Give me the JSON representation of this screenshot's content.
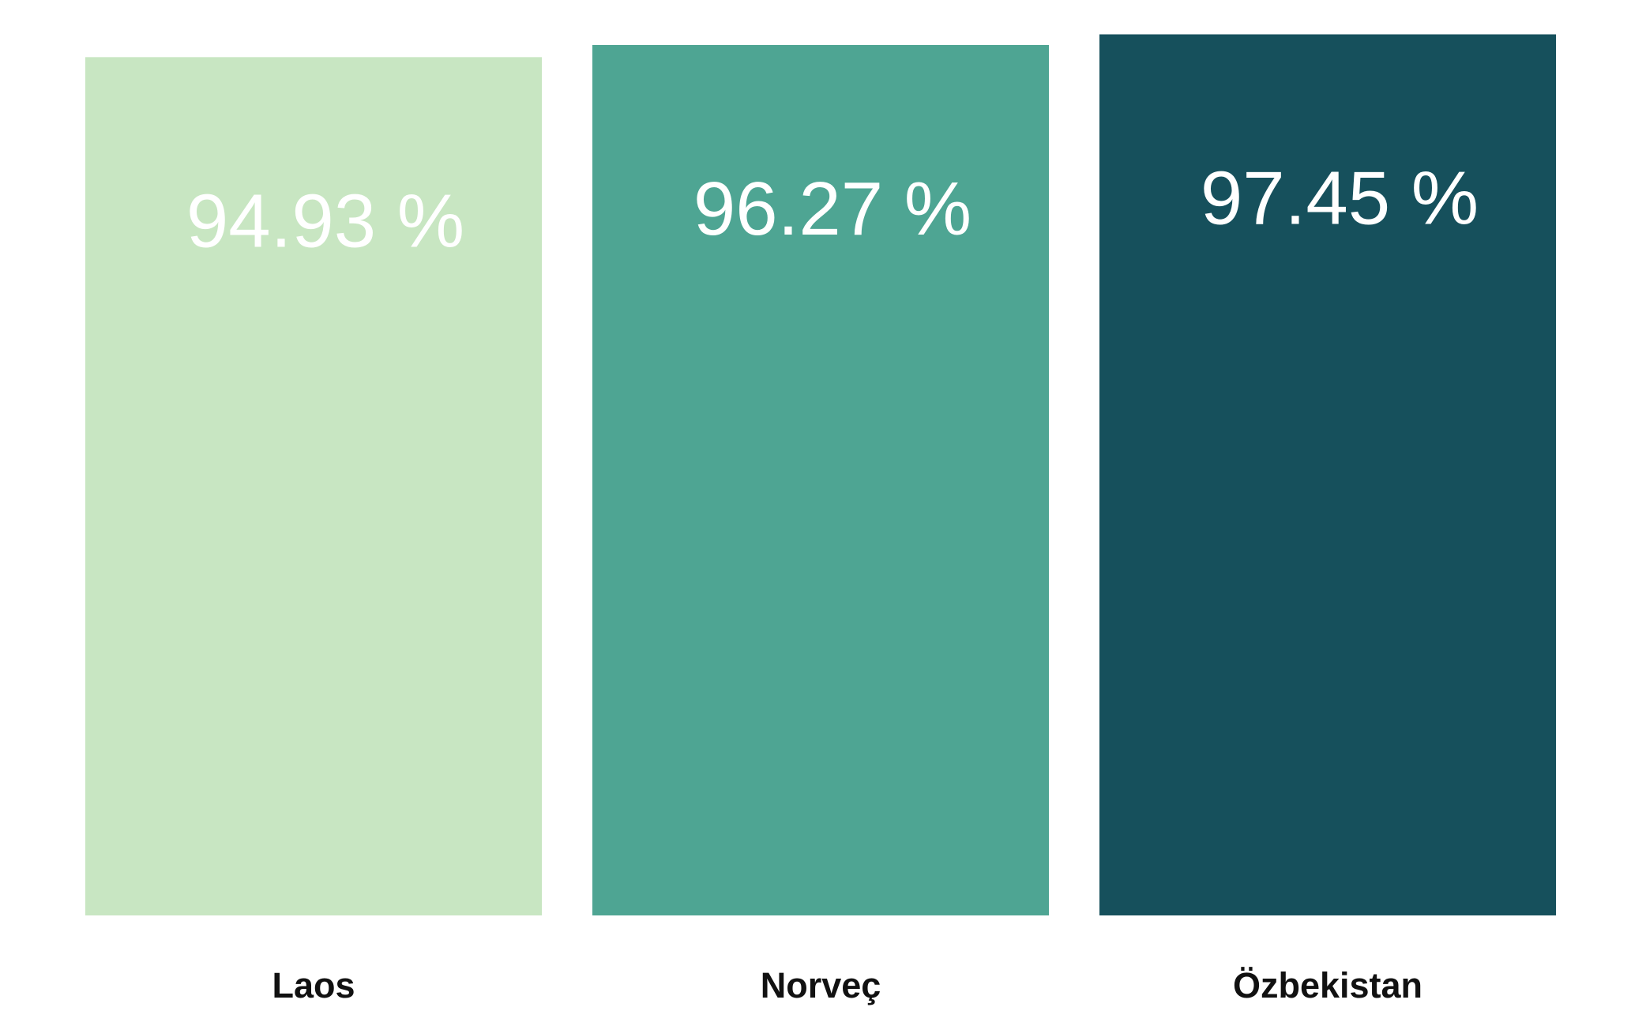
{
  "chart_data": {
    "type": "bar",
    "categories": [
      "Laos",
      "Norveç",
      "Özbekistan"
    ],
    "values": [
      94.93,
      96.27,
      97.45
    ],
    "value_labels": [
      "94.93 %",
      "96.27 %",
      "97.45 %"
    ],
    "colors": [
      "#c8e6c2",
      "#4ea593",
      "#16505c"
    ],
    "label_color": "#ffffff",
    "category_label_color": "#111111",
    "title": "",
    "xlabel": "",
    "ylabel": "",
    "ylim": [
      0,
      100
    ],
    "grid": false,
    "legend": "none"
  }
}
